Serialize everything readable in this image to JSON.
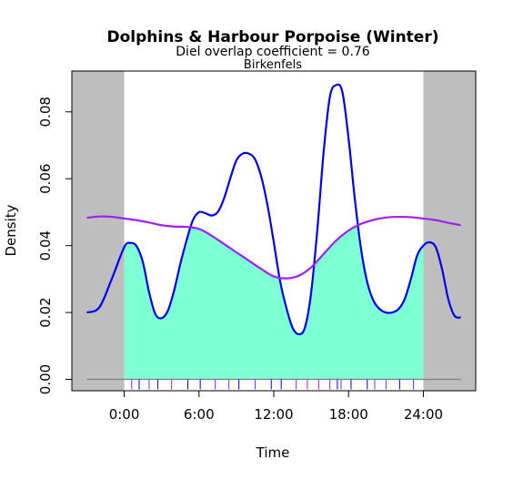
{
  "chart_data": {
    "type": "area",
    "title": "Dolphins & Harbour Porpoise (Winter)",
    "subtitle": "Diel overlap coefficient =  0.76",
    "location": "Birkenfels",
    "xlabel": "Time",
    "ylabel": "Density",
    "xlim": [
      -4.2,
      28.2
    ],
    "ylim": [
      -0.0034,
      0.0922
    ],
    "x_ticks": [
      0,
      6,
      12,
      18,
      24
    ],
    "x_tick_labels": [
      "0:00",
      "6:00",
      "12:00",
      "18:00",
      "24:00"
    ],
    "y_ticks": [
      0.0,
      0.02,
      0.04,
      0.06,
      0.08
    ],
    "y_tick_labels": [
      "0.00",
      "0.02",
      "0.04",
      "0.06",
      "0.08"
    ],
    "shaded_regions": [
      [
        -4.2,
        0
      ],
      [
        24,
        28.2
      ]
    ],
    "shading_color": "#bebebe",
    "overlap_color": "#7fffd4",
    "series": [
      {
        "color": "#0000ee",
        "x": [
          -3,
          -2,
          -1,
          0,
          0.5,
          1,
          1.5,
          2,
          2.5,
          3,
          3.5,
          4,
          4.5,
          5,
          5.5,
          6,
          6.5,
          7,
          7.5,
          8,
          8.5,
          9,
          9.5,
          10,
          10.5,
          11,
          11.5,
          12,
          12.5,
          13,
          13.5,
          14,
          14.5,
          15,
          15.5,
          16,
          16.5,
          17,
          17.5,
          18,
          18.5,
          19,
          19.5,
          20,
          20.5,
          21,
          21.5,
          22,
          22.5,
          23,
          23.5,
          24,
          24.5,
          25,
          25.5,
          26,
          26.5,
          27
        ],
        "y": [
          0.02,
          0.0215,
          0.03,
          0.0395,
          0.0408,
          0.0398,
          0.035,
          0.026,
          0.0195,
          0.0183,
          0.0205,
          0.0265,
          0.0345,
          0.0415,
          0.0475,
          0.05,
          0.0497,
          0.049,
          0.05,
          0.054,
          0.06,
          0.0655,
          0.0675,
          0.0675,
          0.0658,
          0.0605,
          0.052,
          0.041,
          0.0295,
          0.0215,
          0.0155,
          0.0135,
          0.0155,
          0.026,
          0.045,
          0.068,
          0.0845,
          0.088,
          0.086,
          0.072,
          0.054,
          0.039,
          0.029,
          0.0235,
          0.021,
          0.02,
          0.02,
          0.021,
          0.024,
          0.03,
          0.037,
          0.04,
          0.041,
          0.0395,
          0.033,
          0.024,
          0.019,
          0.0185
        ]
      },
      {
        "color": "#a020f0",
        "x": [
          -3,
          -2,
          -1,
          0,
          1,
          2,
          3,
          4,
          5,
          6,
          7,
          8,
          9,
          10,
          11,
          12,
          13,
          14,
          15,
          16,
          17,
          18,
          19,
          20,
          21,
          22,
          23,
          24,
          25,
          26,
          27
        ],
        "y": [
          0.0483,
          0.0487,
          0.0486,
          0.0481,
          0.0476,
          0.0469,
          0.0461,
          0.0457,
          0.0456,
          0.045,
          0.043,
          0.0405,
          0.038,
          0.0355,
          0.033,
          0.0308,
          0.0302,
          0.031,
          0.0335,
          0.0375,
          0.0415,
          0.0445,
          0.0465,
          0.0477,
          0.0484,
          0.0486,
          0.0485,
          0.0481,
          0.0476,
          0.0468,
          0.0461
        ]
      }
    ],
    "rug": {
      "series_0": [
        1.2,
        2.7,
        5.1,
        6.1,
        9.2,
        11.8,
        12.6,
        17.1,
        18.2,
        19.5,
        22.1
      ],
      "series_1": [
        0.6,
        2.0,
        3.8,
        7.3,
        8.4,
        10.5,
        13.8,
        14.7,
        15.6,
        16.5,
        17.4,
        20.1,
        21.0,
        23.2
      ]
    }
  }
}
